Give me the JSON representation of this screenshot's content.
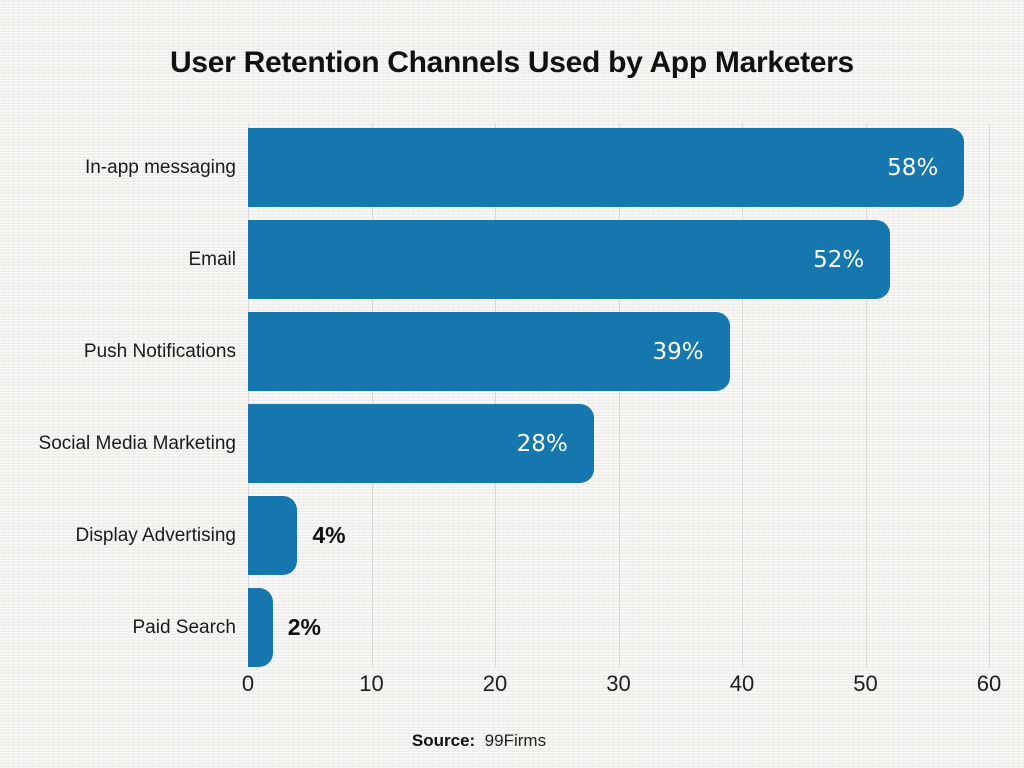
{
  "title": "User Retention Channels Used by App Marketers",
  "source": {
    "label": "Source:",
    "value": "99Firms"
  },
  "colors": {
    "bar": "#1577ad",
    "background": "#f2f1ee",
    "gridline": "#d9d8d4",
    "value_inside_text": "#ffffff",
    "value_outside_text": "#111111"
  },
  "chart_data": {
    "type": "bar",
    "orientation": "horizontal",
    "title": "User Retention Channels Used by App Marketers",
    "categories": [
      "In-app messaging",
      "Email",
      "Push Notifications",
      "Social Media Marketing",
      "Display Advertising",
      "Paid Search"
    ],
    "values": [
      58,
      52,
      39,
      28,
      4,
      2
    ],
    "value_labels": [
      "58%",
      "52%",
      "39%",
      "28%",
      "4%",
      "2%"
    ],
    "xlabel": "",
    "ylabel": "",
    "xlim": [
      0,
      60
    ],
    "xticks": [
      0,
      10,
      20,
      30,
      40,
      50,
      60
    ],
    "grid": "vertical",
    "legend": "none",
    "source": "Source: 99Firms"
  }
}
